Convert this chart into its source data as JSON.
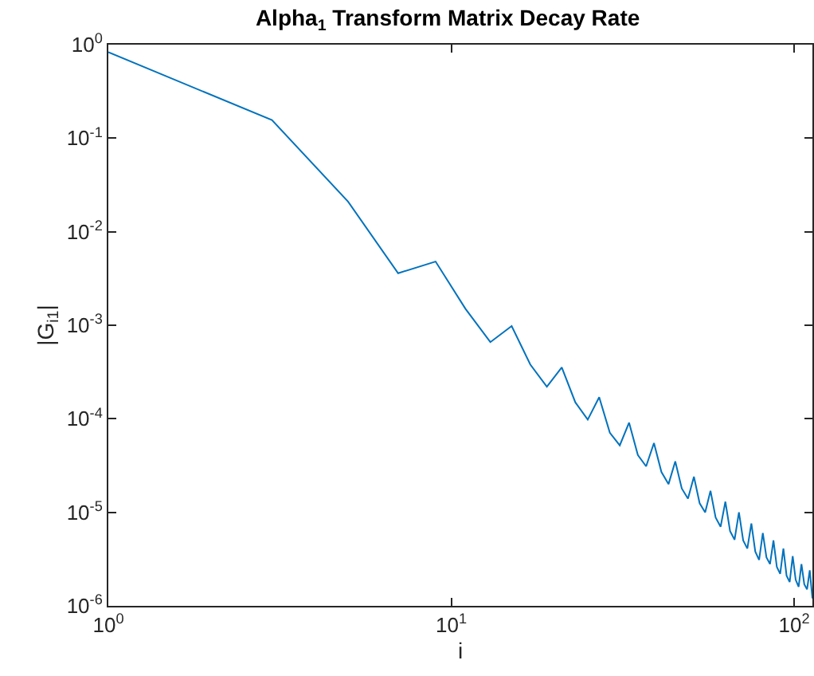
{
  "chart_data": {
    "type": "line",
    "title": "Alpha$_{1}$ Transform Matrix Decay Rate",
    "xlabel": "i",
    "ylabel": "|G$_{i1}$|",
    "log": "xy",
    "grid": false,
    "legend": false,
    "marker": "none",
    "line_style": "solid",
    "xlim": [
      1,
      113
    ],
    "ylim": [
      1e-06,
      1
    ],
    "xticks": [
      {
        "value": 1,
        "label": "10$^{0}$"
      },
      {
        "value": 10,
        "label": "10$^{1}$"
      },
      {
        "value": 100,
        "label": "10$^{2}$"
      }
    ],
    "yticks": [
      {
        "value": 1e-06,
        "label": "10$^{-6}$"
      },
      {
        "value": 1e-05,
        "label": "10$^{-5}$"
      },
      {
        "value": 0.0001,
        "label": "10$^{-4}$"
      },
      {
        "value": 0.001,
        "label": "10$^{-3}$"
      },
      {
        "value": 0.01,
        "label": "10$^{-2}$"
      },
      {
        "value": 0.1,
        "label": "10$^{-1}$"
      },
      {
        "value": 1,
        "label": "10$^{0}$"
      }
    ],
    "x": [
      1,
      3,
      5,
      7,
      9,
      11,
      13,
      15,
      17,
      19,
      21,
      23,
      25,
      27,
      29,
      31,
      33,
      35,
      37,
      39,
      41,
      43,
      45,
      47,
      49,
      51,
      53,
      55,
      57,
      59,
      61,
      63,
      65,
      67,
      69,
      71,
      73,
      75,
      77,
      79,
      81,
      83,
      85,
      87,
      89,
      91,
      93,
      95,
      97,
      99,
      101,
      103,
      105,
      107,
      109,
      111,
      113
    ],
    "series": [
      {
        "color": "#0072bd",
        "values": [
          0.83,
          0.156,
          0.021,
          0.0036,
          0.0048,
          0.0015,
          0.00066,
          0.00098,
          0.00038,
          0.00022,
          0.000355,
          0.00015,
          9.8e-05,
          0.00017,
          7.1e-05,
          5.2e-05,
          9.1e-05,
          4.1e-05,
          3.1e-05,
          5.5e-05,
          2.7e-05,
          2e-05,
          3.5e-05,
          1.8e-05,
          1.4e-05,
          2.4e-05,
          1.25e-05,
          1e-05,
          1.7e-05,
          8.8e-06,
          7e-06,
          1.3e-05,
          6.3e-06,
          5.1e-06,
          1e-05,
          5e-06,
          4.1e-06,
          7.6e-06,
          3.8e-06,
          3.1e-06,
          6e-06,
          3.3e-06,
          2.8e-06,
          5e-06,
          2.6e-06,
          2.2e-06,
          4.1e-06,
          2.1e-06,
          1.8e-06,
          3.4e-06,
          1.9e-06,
          1.6e-06,
          2.8e-06,
          1.7e-06,
          1.5e-06,
          2.4e-06,
          1.2e-06
        ]
      }
    ]
  }
}
